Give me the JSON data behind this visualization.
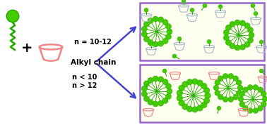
{
  "bg_color": "#ffffff",
  "box_bg": "#fffff0",
  "box_border": "#9966cc",
  "green_dark": "#22aa00",
  "green_ball": "#44cc00",
  "pink_cd": "#ee8888",
  "gray_cd": "#aabbcc",
  "arrow_color": "#4444cc",
  "label_n1": "n < 10\nn > 12",
  "label_n2": "n = 10-12",
  "label_chain": "Alkyl chain",
  "figw": 3.78,
  "figh": 1.78,
  "dpi": 100
}
